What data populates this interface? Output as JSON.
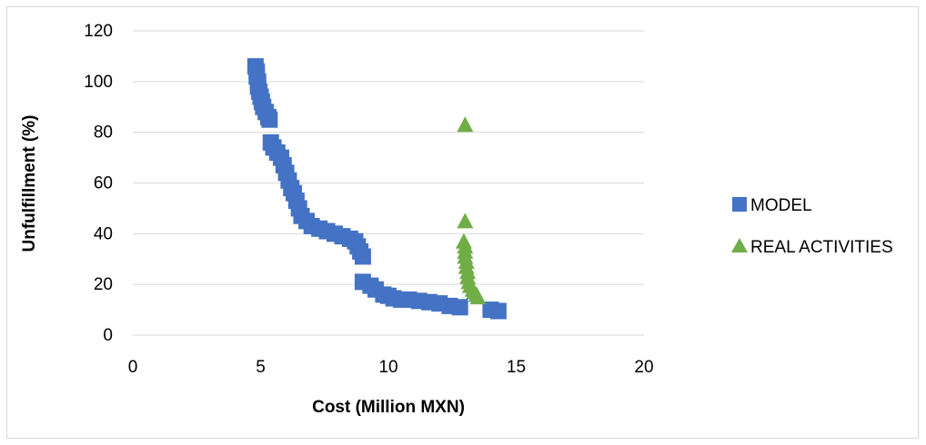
{
  "chart_data": {
    "type": "scatter",
    "xlabel": "Cost (Million MXN)",
    "ylabel": "Unfulfillment (%)",
    "xlim": [
      0,
      20
    ],
    "ylim": [
      0,
      120
    ],
    "x_ticks": [
      "0",
      "5",
      "10",
      "15",
      "20"
    ],
    "y_ticks": [
      "0",
      "20",
      "40",
      "60",
      "80",
      "100",
      "120"
    ],
    "grid": "horizontal",
    "legend_position": "right",
    "series": [
      {
        "name": "MODEL",
        "marker": "square",
        "color": "#4472c4",
        "points": [
          [
            4.8,
            106
          ],
          [
            4.85,
            104
          ],
          [
            4.85,
            102
          ],
          [
            4.9,
            100
          ],
          [
            4.9,
            98
          ],
          [
            4.95,
            96
          ],
          [
            5.0,
            94
          ],
          [
            5.05,
            92
          ],
          [
            5.1,
            90
          ],
          [
            5.2,
            88
          ],
          [
            5.3,
            86
          ],
          [
            5.35,
            85
          ],
          [
            5.4,
            76
          ],
          [
            5.5,
            74
          ],
          [
            5.65,
            72
          ],
          [
            5.8,
            70
          ],
          [
            5.9,
            67
          ],
          [
            6.0,
            64
          ],
          [
            6.1,
            61
          ],
          [
            6.2,
            58
          ],
          [
            6.3,
            56
          ],
          [
            6.4,
            53
          ],
          [
            6.5,
            50
          ],
          [
            6.6,
            47
          ],
          [
            6.8,
            45
          ],
          [
            7.0,
            43
          ],
          [
            7.3,
            42
          ],
          [
            7.6,
            41
          ],
          [
            7.9,
            40
          ],
          [
            8.2,
            39
          ],
          [
            8.5,
            38
          ],
          [
            8.7,
            37
          ],
          [
            8.8,
            35
          ],
          [
            8.9,
            33
          ],
          [
            9.0,
            31
          ],
          [
            9.0,
            21
          ],
          [
            9.3,
            19.5
          ],
          [
            9.5,
            18
          ],
          [
            9.8,
            16
          ],
          [
            10.0,
            15.5
          ],
          [
            10.2,
            14.5
          ],
          [
            10.5,
            14
          ],
          [
            10.8,
            14
          ],
          [
            11.2,
            13.5
          ],
          [
            11.6,
            13
          ],
          [
            12.0,
            12.5
          ],
          [
            12.4,
            11.5
          ],
          [
            12.8,
            11
          ],
          [
            14.0,
            10
          ],
          [
            14.3,
            9.5
          ]
        ]
      },
      {
        "name": "REAL ACTIVITIES",
        "marker": "triangle",
        "color": "#70ad47",
        "points": [
          [
            13.0,
            83
          ],
          [
            13.0,
            45
          ],
          [
            12.95,
            37
          ],
          [
            13.0,
            35
          ],
          [
            13.0,
            33
          ],
          [
            13.0,
            31
          ],
          [
            13.05,
            29
          ],
          [
            13.05,
            27
          ],
          [
            13.1,
            25
          ],
          [
            13.1,
            23
          ],
          [
            13.15,
            21
          ],
          [
            13.2,
            19.5
          ],
          [
            13.3,
            18
          ],
          [
            13.35,
            17
          ],
          [
            13.45,
            16
          ],
          [
            13.5,
            15
          ]
        ]
      }
    ]
  }
}
